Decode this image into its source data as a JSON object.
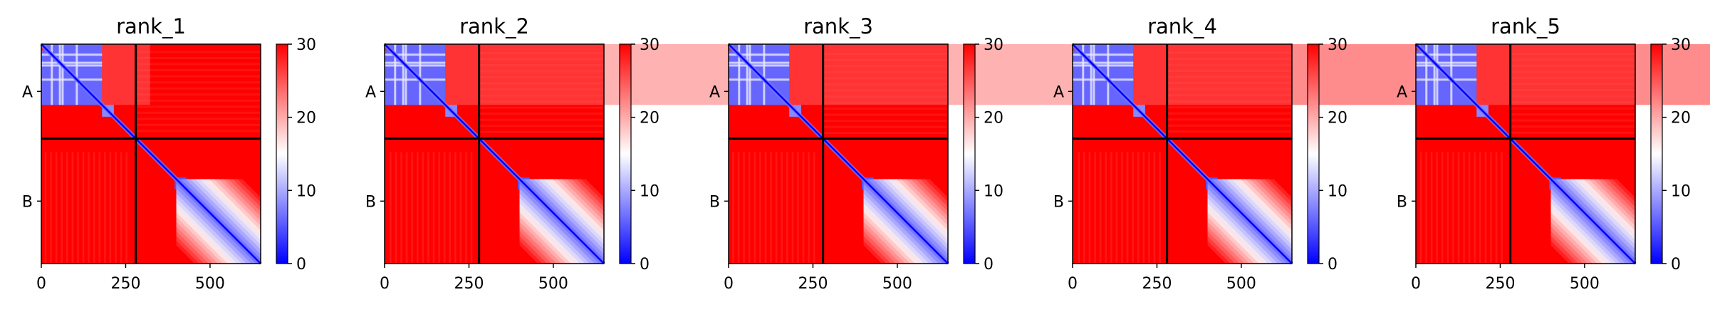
{
  "colors": {
    "low": "#0000ff",
    "mid": "#ffffff",
    "high": "#ff0000",
    "divider": "#000000"
  },
  "colorbar": {
    "min": 0,
    "max": 30,
    "ticks": [
      "0",
      "10",
      "20",
      "30"
    ]
  },
  "chart_data": [
    {
      "type": "heatmap",
      "title": "rank_1",
      "xlabel": "",
      "ylabel": "",
      "xticks": [
        "0",
        "250",
        "500"
      ],
      "yticks": [
        "A",
        "B"
      ],
      "xlim": [
        0,
        650
      ],
      "ylim": [
        0,
        650
      ],
      "chain_boundary": 280,
      "colorbar_range": [
        0,
        30
      ],
      "values": "predicted aligned error matrix: low (blue) along diagonal and within chain A (0-190) and chain B C-terminal region (400-650); high (red, ~30) elsewhere"
    },
    {
      "type": "heatmap",
      "title": "rank_2",
      "xlabel": "",
      "ylabel": "",
      "xticks": [
        "0",
        "250",
        "500"
      ],
      "yticks": [
        "A",
        "B"
      ],
      "xlim": [
        0,
        650
      ],
      "ylim": [
        0,
        650
      ],
      "chain_boundary": 280,
      "colorbar_range": [
        0,
        30
      ]
    },
    {
      "type": "heatmap",
      "title": "rank_3",
      "xlabel": "",
      "ylabel": "",
      "xticks": [
        "0",
        "250",
        "500"
      ],
      "yticks": [
        "A",
        "B"
      ],
      "xlim": [
        0,
        650
      ],
      "ylim": [
        0,
        650
      ],
      "chain_boundary": 280,
      "colorbar_range": [
        0,
        30
      ]
    },
    {
      "type": "heatmap",
      "title": "rank_4",
      "xlabel": "",
      "ylabel": "",
      "xticks": [
        "0",
        "250",
        "500"
      ],
      "yticks": [
        "A",
        "B"
      ],
      "xlim": [
        0,
        650
      ],
      "ylim": [
        0,
        650
      ],
      "chain_boundary": 280,
      "colorbar_range": [
        0,
        30
      ]
    },
    {
      "type": "heatmap",
      "title": "rank_5",
      "xlabel": "",
      "ylabel": "",
      "xticks": [
        "0",
        "250",
        "500"
      ],
      "yticks": [
        "A",
        "B"
      ],
      "xlim": [
        0,
        650
      ],
      "ylim": [
        0,
        650
      ],
      "chain_boundary": 280,
      "colorbar_range": [
        0,
        30
      ]
    }
  ]
}
